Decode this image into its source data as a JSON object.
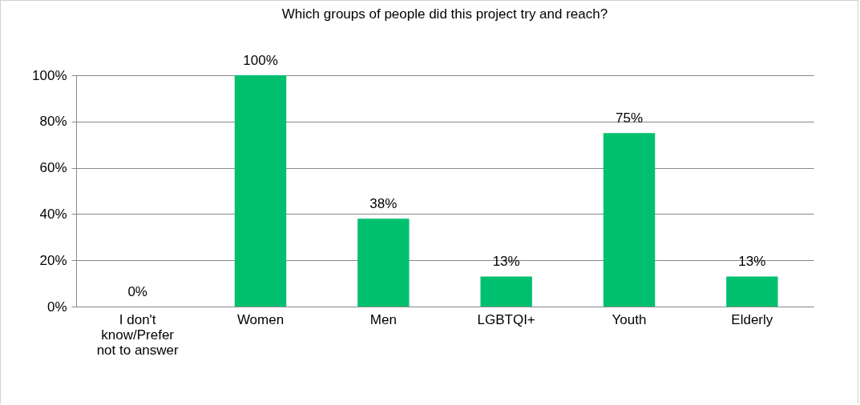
{
  "chart_data": {
    "type": "bar",
    "title": "Which groups of people did this project try and reach?",
    "categories": [
      "I don't know/Prefer not to answer",
      "Women",
      "Men",
      "LGBTQI+",
      "Youth",
      "Elderly"
    ],
    "values": [
      0,
      100,
      38,
      13,
      75,
      13
    ],
    "value_labels": [
      "0%",
      "100%",
      "38%",
      "13%",
      "75%",
      "13%"
    ],
    "color": "#00c070",
    "ylim": [
      0,
      100
    ],
    "yticks": [
      {
        "value": 0,
        "label": "0%"
      },
      {
        "value": 20,
        "label": "20%"
      },
      {
        "value": 40,
        "label": "40%"
      },
      {
        "value": 60,
        "label": "60%"
      },
      {
        "value": 80,
        "label": "80%"
      },
      {
        "value": 100,
        "label": "100%"
      }
    ],
    "grid": "y"
  }
}
